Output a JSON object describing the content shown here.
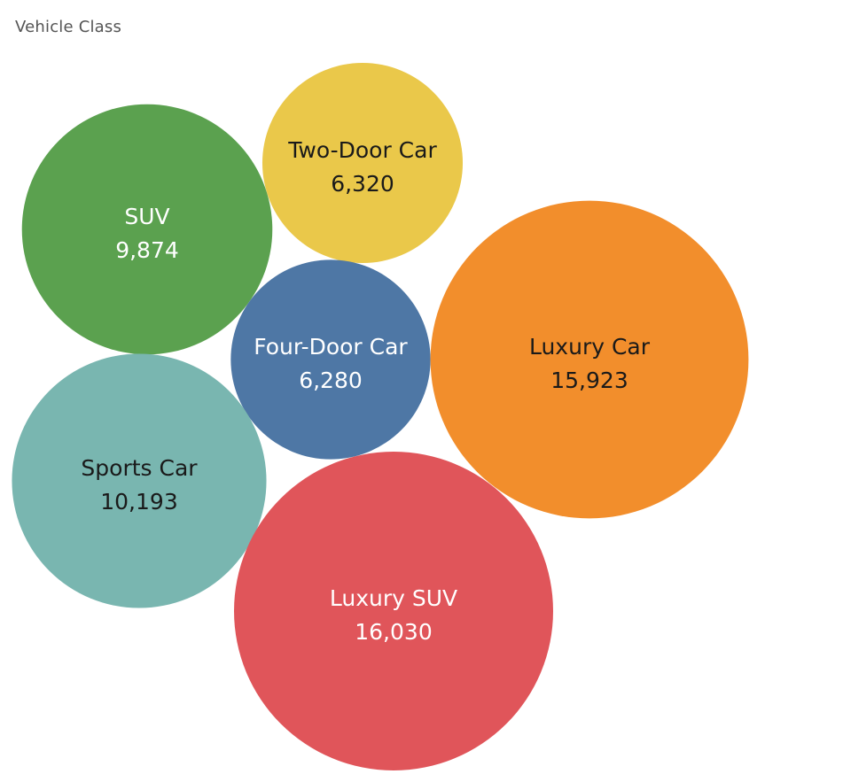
{
  "chart_data": {
    "type": "bubble",
    "title": "Vehicle Class",
    "categories": [
      "Two-Door Car",
      "SUV",
      "Four-Door Car",
      "Luxury Car",
      "Sports Car",
      "Luxury SUV"
    ],
    "values": [
      6320,
      9874,
      6280,
      15923,
      10193,
      16030
    ],
    "value_labels": [
      "6,320",
      "9,874",
      "6,280",
      "15,923",
      "10,193",
      "16,030"
    ],
    "colors": [
      "#EAC84A",
      "#5BA14F",
      "#4E77A5",
      "#F28E2C",
      "#79B6B0",
      "#E0555A"
    ],
    "label_colors": [
      "#1a1a1a",
      "#ffffff",
      "#ffffff",
      "#1a1a1a",
      "#1a1a1a",
      "#ffffff"
    ]
  }
}
